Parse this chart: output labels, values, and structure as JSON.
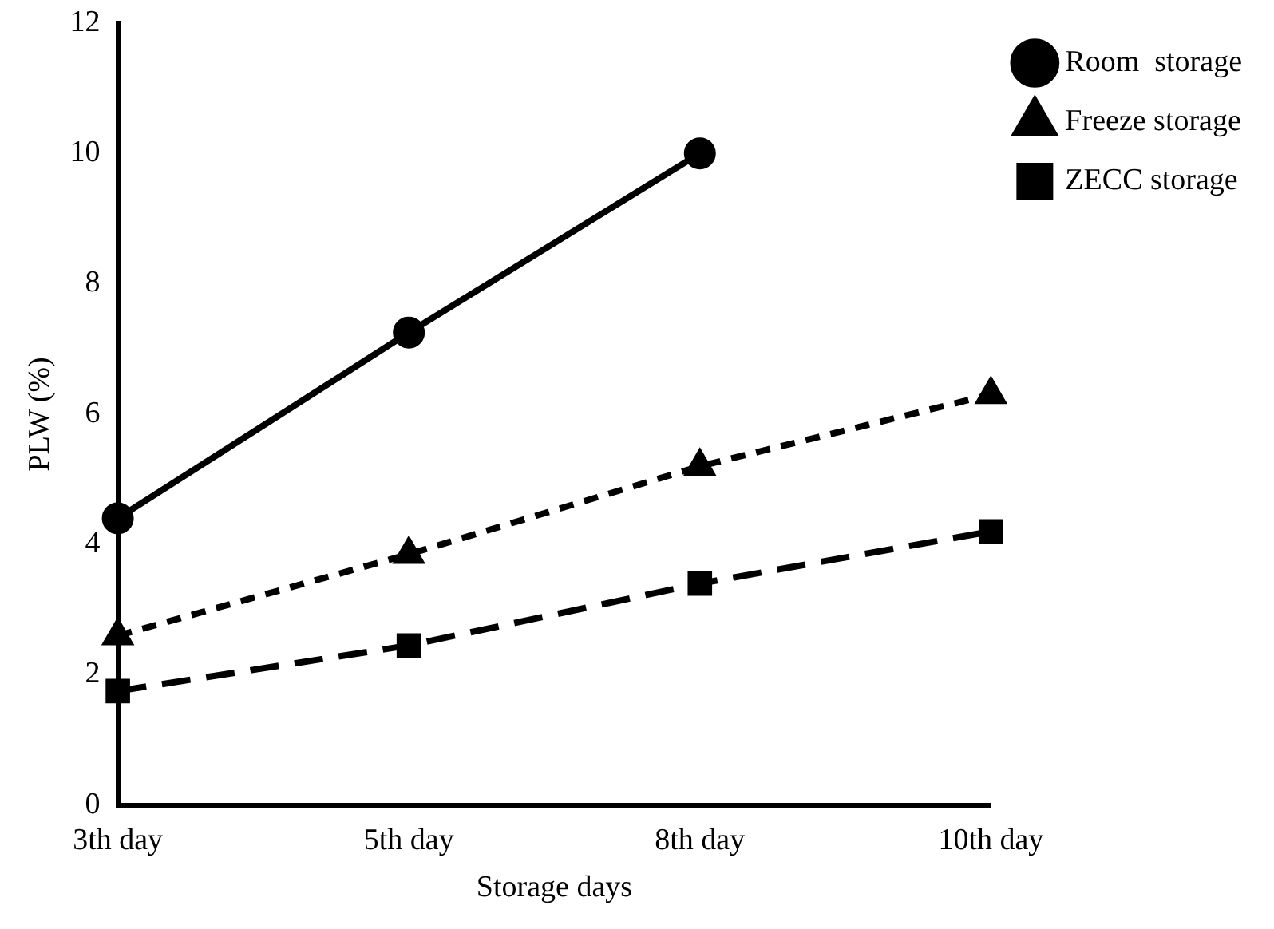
{
  "chart_data": {
    "type": "line",
    "xlabel": "Storage days",
    "ylabel": "PLW (%)",
    "categories": [
      "3th day",
      "5th day",
      "8th day",
      "10th day"
    ],
    "series": [
      {
        "name": "Room  storage",
        "color": "#000000",
        "values": [
          4.4,
          7.25,
          10.0,
          null
        ],
        "marker": "circle",
        "line_style": "solid"
      },
      {
        "name": "Freeze storage",
        "color": "#000000",
        "values": [
          2.6,
          3.85,
          5.2,
          6.3
        ],
        "marker": "triangle",
        "line_style": "dotted"
      },
      {
        "name": "ZECC storage",
        "color": "#000000",
        "values": [
          1.75,
          2.45,
          3.4,
          4.2
        ],
        "marker": "square",
        "line_style": "dashed"
      }
    ],
    "ylim": [
      0,
      12
    ],
    "yticks": [
      0,
      2,
      4,
      6,
      8,
      10,
      12
    ],
    "grid": false,
    "legend": "right"
  }
}
